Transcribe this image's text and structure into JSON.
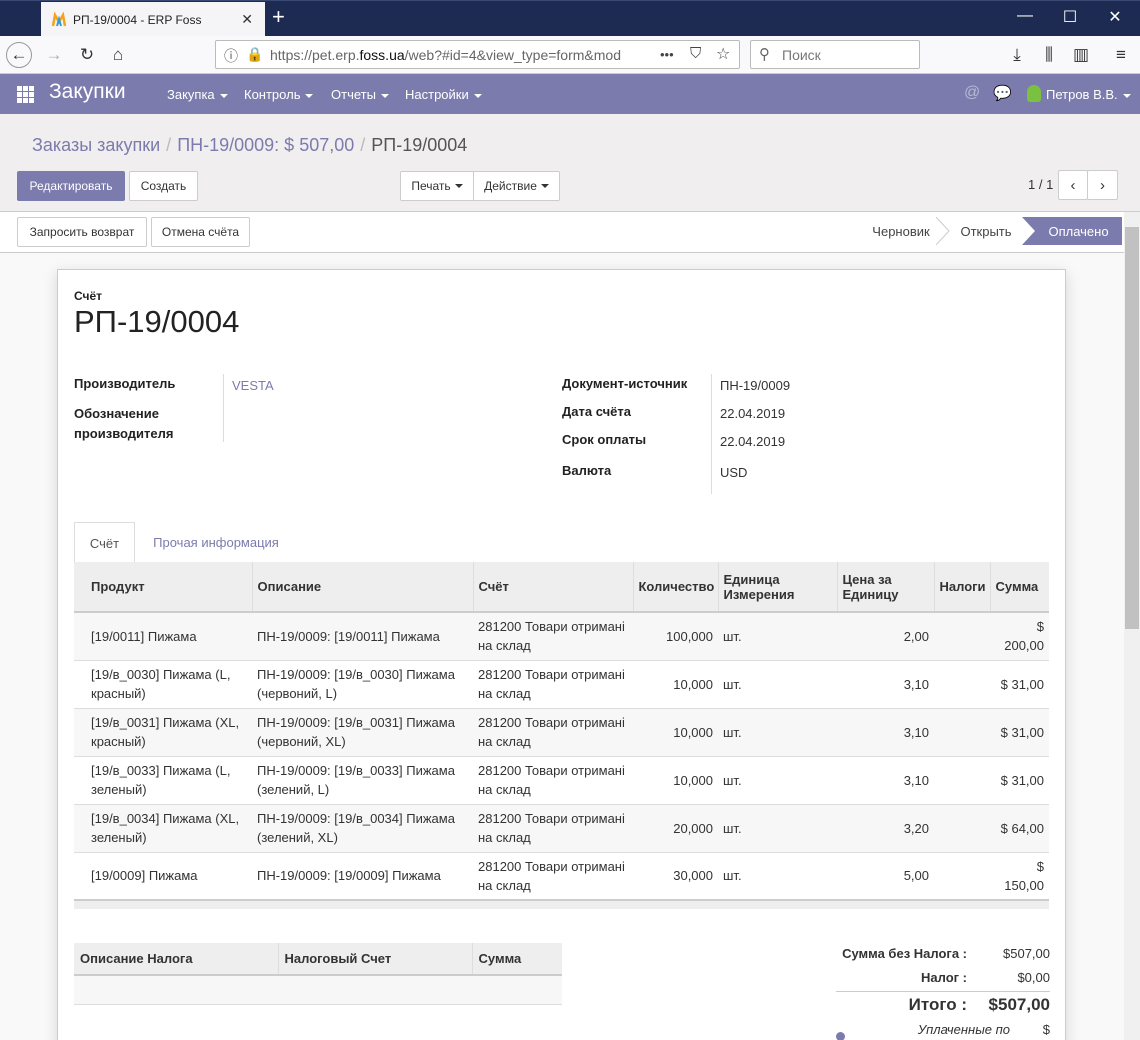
{
  "browser": {
    "tab_title": "РП-19/0004 - ERP Foss",
    "tab_close": "✕",
    "new_tab": "+",
    "url_host": "https://pet.erp.",
    "url_domain": "foss.ua",
    "url_path": "/web?#id=4&view_type=form&mod",
    "url_more": "•••",
    "search_placeholder": "Поиск"
  },
  "app": {
    "title": "Закупки",
    "menu": [
      "Закупка",
      "Контроль",
      "Отчеты",
      "Настройки"
    ],
    "user": "Петров В.В.",
    "accent": "#7c7bad"
  },
  "breadcrumb": {
    "items": [
      "Заказы закупки",
      "ПН-19/0009: $ 507,00"
    ],
    "current": "РП-19/0004",
    "separator": "/"
  },
  "buttons": {
    "edit": "Редактировать",
    "create": "Создать",
    "print": "Печать",
    "action": "Действие",
    "refund": "Запросить возврат",
    "cancel": "Отмена счёта"
  },
  "pager": {
    "value": "1 / 1"
  },
  "status": {
    "stages": [
      "Черновик",
      "Открыть",
      "Оплачено"
    ],
    "active": "Оплачено"
  },
  "invoice": {
    "caption": "Счёт",
    "number": "РП-19/0004",
    "left_fields": [
      {
        "label": "Производитель",
        "value": "VESTA"
      },
      {
        "label": "Обозначение производителя",
        "value": ""
      }
    ],
    "right_fields": [
      {
        "label": "Документ-источник",
        "value": "ПН-19/0009"
      },
      {
        "label": "Дата счёта",
        "value": "22.04.2019"
      },
      {
        "label": "Срок оплаты",
        "value": "22.04.2019"
      },
      {
        "label": "Валюта",
        "value": "USD"
      }
    ]
  },
  "notebook": {
    "tabs": [
      "Счёт",
      "Прочая информация"
    ]
  },
  "lines": {
    "headers": [
      "Продукт",
      "Описание",
      "Счёт",
      "Количество",
      "Единица Измерения",
      "Цена за Единицу",
      "Налоги",
      "Сумма"
    ],
    "rows": [
      [
        "[19/0011] Пижама",
        "ПН-19/0009: [19/0011] Пижама",
        "281200 Товари отримані на склад",
        "100,000",
        "шт.",
        "2,00",
        "",
        "$ 200,00"
      ],
      [
        "[19/в_0030] Пижама (L, красный)",
        "ПН-19/0009: [19/в_0030] Пижама (червоний, L)",
        "281200 Товари отримані на склад",
        "10,000",
        "шт.",
        "3,10",
        "",
        "$ 31,00"
      ],
      [
        "[19/в_0031] Пижама (XL, красный)",
        "ПН-19/0009: [19/в_0031] Пижама (червоний, XL)",
        "281200 Товари отримані на склад",
        "10,000",
        "шт.",
        "3,10",
        "",
        "$ 31,00"
      ],
      [
        "[19/в_0033] Пижама (L, зеленый)",
        "ПН-19/0009: [19/в_0033] Пижама (зелений, L)",
        "281200 Товари отримані на склад",
        "10,000",
        "шт.",
        "3,10",
        "",
        "$ 31,00"
      ],
      [
        "[19/в_0034] Пижама (XL, зеленый)",
        "ПН-19/0009: [19/в_0034] Пижама (зелений, XL)",
        "281200 Товари отримані на склад",
        "20,000",
        "шт.",
        "3,20",
        "",
        "$ 64,00"
      ],
      [
        "[19/0009] Пижама",
        "ПН-19/0009: [19/0009] Пижама",
        "281200 Товари отримані на склад",
        "30,000",
        "шт.",
        "5,00",
        "",
        "$ 150,00"
      ]
    ]
  },
  "taxes": {
    "headers": [
      "Описание Налога",
      "Налоговый Счет",
      "Сумма"
    ]
  },
  "totals": {
    "untaxed_label": "Сумма без Налога :",
    "untaxed": "$507,00",
    "tax_label": "Налог :",
    "tax": "$0,00",
    "total_label": "Итого :",
    "total": "$507,00",
    "paid_label": "Уплаченные по",
    "paid_value": "$"
  }
}
